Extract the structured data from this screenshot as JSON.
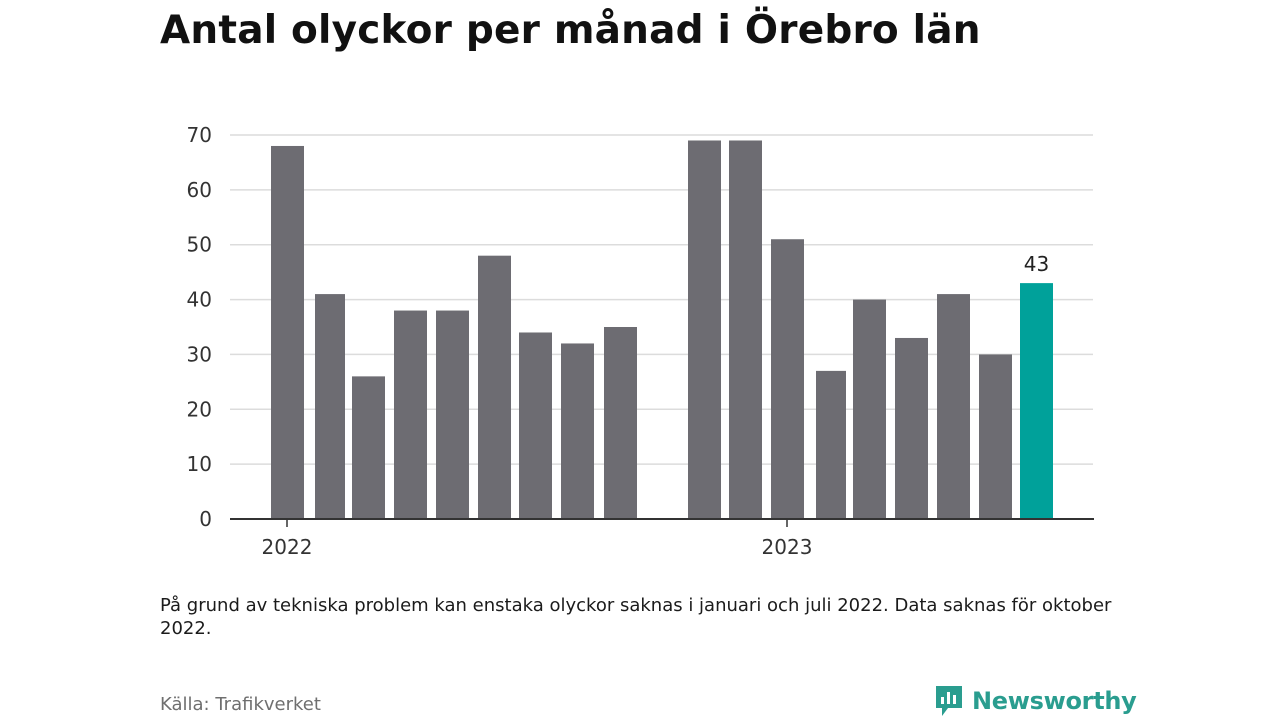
{
  "title": "Antal olyckor per månad i Örebro län",
  "note": "På grund av tekniska problem kan enstaka olyckor saknas i januari och juli 2022. Data saknas för oktober 2022.",
  "source": "Källa: Trafikverket",
  "brand": {
    "name": "Newsworthy",
    "icon": "newsworthy-logo-icon",
    "color": "#2a9d8f"
  },
  "colors": {
    "bar": "#6d6c72",
    "highlight": "#00a19a",
    "grid": "#dcdcdc",
    "axis": "#333333"
  },
  "chart_data": {
    "type": "bar",
    "title": "Antal olyckor per månad i Örebro län",
    "xlabel": "",
    "ylabel": "",
    "ylim": [
      0,
      70
    ],
    "yticks": [
      0,
      10,
      20,
      30,
      40,
      50,
      60,
      70
    ],
    "grid": true,
    "year_labels": [
      "2022",
      "2023"
    ],
    "series": [
      {
        "values_2022": [
          68,
          41,
          26,
          38,
          38,
          48,
          34,
          32,
          35
        ],
        "values_2023": [
          69,
          69,
          51,
          27,
          40,
          33,
          41,
          30,
          43
        ]
      }
    ],
    "highlight": {
      "year": "2023",
      "index": 8,
      "value": 43,
      "label": "43"
    }
  }
}
